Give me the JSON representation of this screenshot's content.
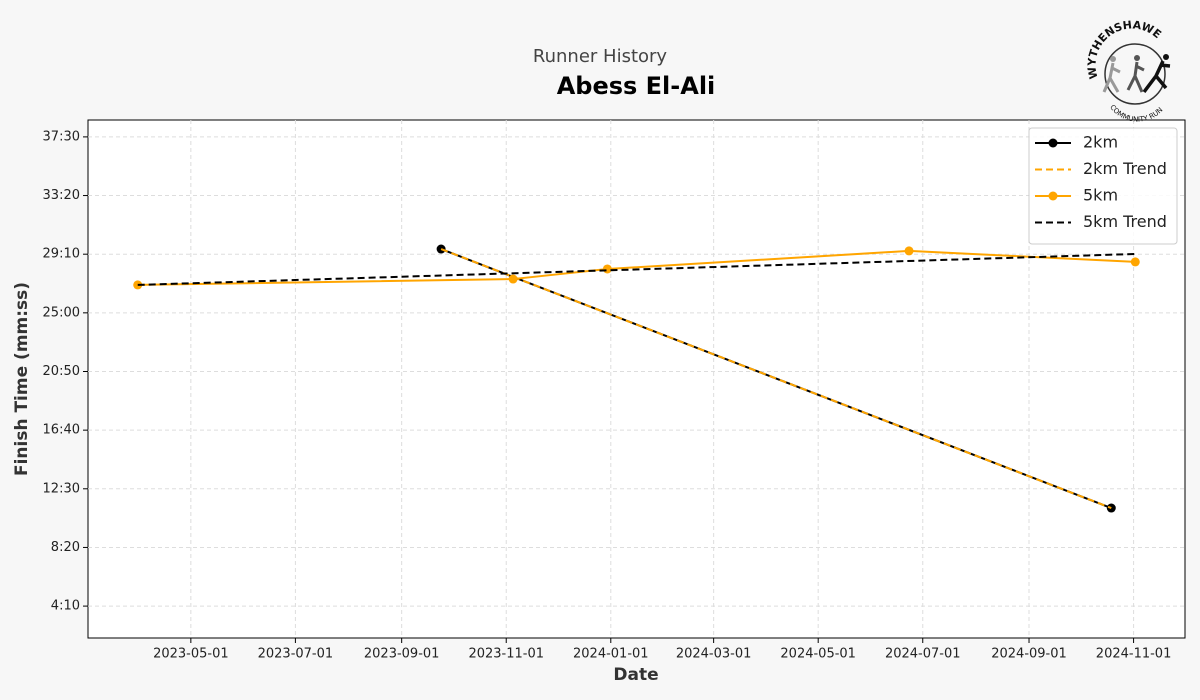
{
  "chart_data": {
    "type": "line",
    "title": "Runner History",
    "subtitle": "Abess El-Ali",
    "logo": {
      "top": "WYTHENSHAWE",
      "bottom": "COMMUNITY RUN"
    },
    "x_label": "Date",
    "y_label": "Finish Time (mm:ss)",
    "xlim": [
      "2023-03-02",
      "2024-12-01"
    ],
    "xticks": [
      "2023-05-01",
      "2023-07-01",
      "2023-09-01",
      "2023-11-01",
      "2024-01-01",
      "2024-03-01",
      "2024-05-01",
      "2024-07-01",
      "2024-09-01",
      "2024-11-01"
    ],
    "ylim": [
      114,
      2322
    ],
    "yticks": [
      {
        "value": 250,
        "label": "4:10"
      },
      {
        "value": 500,
        "label": "8:20"
      },
      {
        "value": 750,
        "label": "12:30"
      },
      {
        "value": 1000,
        "label": "16:40"
      },
      {
        "value": 1250,
        "label": "20:50"
      },
      {
        "value": 1500,
        "label": "25:00"
      },
      {
        "value": 1750,
        "label": "29:10"
      },
      {
        "value": 2000,
        "label": "33:20"
      },
      {
        "value": 2250,
        "label": "37:30"
      }
    ],
    "grid": true,
    "legend": "upper right",
    "series": [
      {
        "name": "2km",
        "color": "#000000",
        "linestyle": "solid",
        "marker": true,
        "x": [
          "2023-09-24",
          "2024-10-19"
        ],
        "values": [
          1772,
          668
        ]
      },
      {
        "name": "2km Trend",
        "color": "#ffa500",
        "linestyle": "dashed",
        "marker": false,
        "x": [
          "2023-09-24",
          "2024-10-19"
        ],
        "values": [
          1772,
          668
        ]
      },
      {
        "name": "5km",
        "color": "#ffa500",
        "linestyle": "solid",
        "marker": true,
        "x": [
          "2023-03-31",
          "2023-11-05",
          "2023-12-30",
          "2024-06-23",
          "2024-11-02"
        ],
        "values": [
          1619,
          1644,
          1687,
          1764,
          1717
        ]
      },
      {
        "name": "5km Trend",
        "color": "#000000",
        "linestyle": "dashed",
        "marker": false,
        "x": [
          "2023-03-31",
          "2024-11-02"
        ],
        "values": [
          1619,
          1751
        ]
      }
    ]
  }
}
